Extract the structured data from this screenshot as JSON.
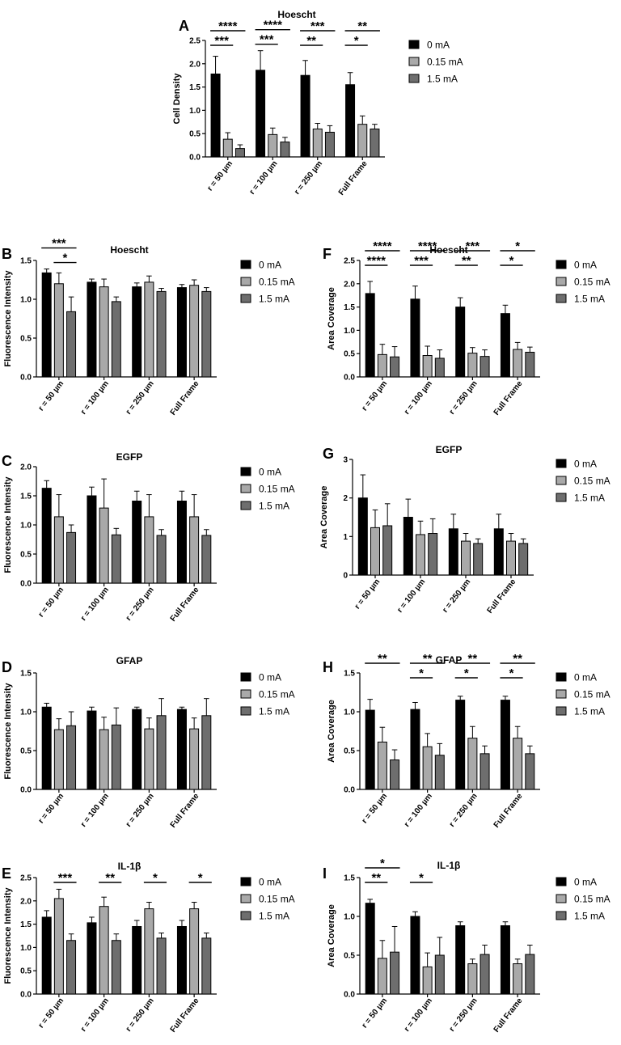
{
  "chart_data": [
    {
      "panel": "A",
      "type": "bar",
      "title": "Hoescht",
      "ylabel": "Cell Density",
      "xlabel": "",
      "ylim": [
        0,
        2.5
      ],
      "yticks": [
        "0.0",
        "0.5",
        "1.0",
        "1.5",
        "2.0",
        "2.5"
      ],
      "categories": [
        "r = 50 µm",
        "r = 100 µm",
        "r = 250 µm",
        "Full Frame"
      ],
      "series": [
        {
          "name": "0 mA",
          "color": "#000000",
          "values": [
            1.78,
            1.86,
            1.75,
            1.55
          ],
          "errors": [
            0.38,
            0.42,
            0.32,
            0.26
          ]
        },
        {
          "name": "0.15 mA",
          "color": "#a9a9a9",
          "values": [
            0.38,
            0.48,
            0.6,
            0.7
          ],
          "errors": [
            0.14,
            0.14,
            0.12,
            0.18
          ]
        },
        {
          "name": "1.5 mA",
          "color": "#6e6e6e",
          "values": [
            0.18,
            0.32,
            0.53,
            0.6
          ],
          "errors": [
            0.08,
            0.1,
            0.14,
            0.1
          ]
        }
      ],
      "significance": [
        {
          "group": 0,
          "from": 0,
          "to": 2,
          "label": "****",
          "level": 1
        },
        {
          "group": 0,
          "from": 0,
          "to": 1,
          "label": "***",
          "level": 0
        },
        {
          "group": 1,
          "from": 0,
          "to": 2,
          "label": "****",
          "level": 1
        },
        {
          "group": 1,
          "from": 0,
          "to": 1,
          "label": "***",
          "level": 0
        },
        {
          "group": 2,
          "from": 0,
          "to": 2,
          "label": "***",
          "level": 1
        },
        {
          "group": 2,
          "from": 0,
          "to": 1,
          "label": "**",
          "level": 0
        },
        {
          "group": 3,
          "from": 0,
          "to": 2,
          "label": "**",
          "level": 1
        },
        {
          "group": 3,
          "from": 0,
          "to": 1,
          "label": "*",
          "level": 0
        }
      ]
    },
    {
      "panel": "B",
      "type": "bar",
      "title": "Hoescht",
      "ylabel": "Fluorescence Intensity",
      "xlabel": "",
      "ylim": [
        0,
        1.5
      ],
      "yticks": [
        "0.0",
        "0.5",
        "1.0",
        "1.5"
      ],
      "categories": [
        "r = 50 µm",
        "r = 100 µm",
        "r = 250 µm",
        "Full Frame"
      ],
      "series": [
        {
          "name": "0 mA",
          "color": "#000000",
          "values": [
            1.34,
            1.22,
            1.16,
            1.15
          ],
          "errors": [
            0.05,
            0.04,
            0.05,
            0.04
          ]
        },
        {
          "name": "0.15 mA",
          "color": "#a9a9a9",
          "values": [
            1.2,
            1.16,
            1.22,
            1.18
          ],
          "errors": [
            0.14,
            0.1,
            0.08,
            0.07
          ]
        },
        {
          "name": "1.5 mA",
          "color": "#6e6e6e",
          "values": [
            0.84,
            0.97,
            1.1,
            1.1
          ],
          "errors": [
            0.19,
            0.06,
            0.04,
            0.05
          ]
        }
      ],
      "significance": [
        {
          "group": 0,
          "from": 0,
          "to": 2,
          "label": "***",
          "level": 1
        },
        {
          "group": 0,
          "from": 1,
          "to": 2,
          "label": "*",
          "level": 0
        }
      ]
    },
    {
      "panel": "F",
      "type": "bar",
      "title": "Hoescht",
      "ylabel": "Area Coverage",
      "xlabel": "",
      "ylim": [
        0,
        2.5
      ],
      "yticks": [
        "0.0",
        "0.5",
        "1.0",
        "1.5",
        "2.0",
        "2.5"
      ],
      "categories": [
        "r = 50 µm",
        "r = 100 µm",
        "r = 250 µm",
        "Full Frame"
      ],
      "series": [
        {
          "name": "0 mA",
          "color": "#000000",
          "values": [
            1.79,
            1.67,
            1.5,
            1.36
          ],
          "errors": [
            0.26,
            0.28,
            0.2,
            0.18
          ]
        },
        {
          "name": "0.15 mA",
          "color": "#a9a9a9",
          "values": [
            0.48,
            0.46,
            0.51,
            0.59
          ],
          "errors": [
            0.22,
            0.2,
            0.12,
            0.15
          ]
        },
        {
          "name": "1.5 mA",
          "color": "#6e6e6e",
          "values": [
            0.43,
            0.4,
            0.44,
            0.53
          ],
          "errors": [
            0.22,
            0.18,
            0.14,
            0.11
          ]
        }
      ],
      "significance": [
        {
          "group": 0,
          "from": 0,
          "to": 2,
          "label": "****",
          "level": 1
        },
        {
          "group": 0,
          "from": 0,
          "to": 1,
          "label": "****",
          "level": 0
        },
        {
          "group": 1,
          "from": 0,
          "to": 2,
          "label": "****",
          "level": 1
        },
        {
          "group": 1,
          "from": 0,
          "to": 1,
          "label": "***",
          "level": 0
        },
        {
          "group": 2,
          "from": 0,
          "to": 2,
          "label": "***",
          "level": 1
        },
        {
          "group": 2,
          "from": 0,
          "to": 1,
          "label": "**",
          "level": 0
        },
        {
          "group": 3,
          "from": 0,
          "to": 2,
          "label": "*",
          "level": 1
        },
        {
          "group": 3,
          "from": 0,
          "to": 1,
          "label": "*",
          "level": 0
        }
      ]
    },
    {
      "panel": "C",
      "type": "bar",
      "title": "EGFP",
      "ylabel": "Fluorescence Intensity",
      "xlabel": "",
      "ylim": [
        0,
        2.0
      ],
      "yticks": [
        "0.0",
        "0.5",
        "1.0",
        "1.5",
        "2.0"
      ],
      "categories": [
        "r = 50 µm",
        "r = 100 µm",
        "r = 250 µm",
        "Full Frame"
      ],
      "series": [
        {
          "name": "0 mA",
          "color": "#000000",
          "values": [
            1.63,
            1.5,
            1.41,
            1.41
          ],
          "errors": [
            0.13,
            0.15,
            0.17,
            0.17
          ]
        },
        {
          "name": "0.15 mA",
          "color": "#a9a9a9",
          "values": [
            1.14,
            1.29,
            1.14,
            1.14
          ],
          "errors": [
            0.38,
            0.5,
            0.38,
            0.38
          ]
        },
        {
          "name": "1.5 mA",
          "color": "#6e6e6e",
          "values": [
            0.87,
            0.83,
            0.82,
            0.82
          ],
          "errors": [
            0.13,
            0.11,
            0.1,
            0.1
          ]
        }
      ],
      "significance": []
    },
    {
      "panel": "G",
      "type": "bar",
      "title": "EGFP",
      "ylabel": "Area Coverage",
      "xlabel": "",
      "ylim": [
        0,
        3
      ],
      "yticks": [
        "0",
        "1",
        "2",
        "3"
      ],
      "categories": [
        "r = 50 µm",
        "r = 100 µm",
        "r = 250 µm",
        "Full Frame"
      ],
      "series": [
        {
          "name": "0 mA",
          "color": "#000000",
          "values": [
            2.0,
            1.5,
            1.2,
            1.2
          ],
          "errors": [
            0.6,
            0.47,
            0.38,
            0.38
          ]
        },
        {
          "name": "0.15 mA",
          "color": "#a9a9a9",
          "values": [
            1.23,
            1.05,
            0.88,
            0.88
          ],
          "errors": [
            0.46,
            0.35,
            0.2,
            0.2
          ]
        },
        {
          "name": "1.5 mA",
          "color": "#6e6e6e",
          "values": [
            1.28,
            1.08,
            0.82,
            0.82
          ],
          "errors": [
            0.57,
            0.38,
            0.12,
            0.12
          ]
        }
      ],
      "significance": []
    },
    {
      "panel": "D",
      "type": "bar",
      "title": "GFAP",
      "ylabel": "Fluorescence Intensity",
      "xlabel": "",
      "ylim": [
        0,
        1.5
      ],
      "yticks": [
        "0.0",
        "0.5",
        "1.0",
        "1.5"
      ],
      "categories": [
        "r = 50 µm",
        "r = 100 µm",
        "r = 250 µm",
        "Full Frame"
      ],
      "series": [
        {
          "name": "0 mA",
          "color": "#000000",
          "values": [
            1.06,
            1.01,
            1.03,
            1.03
          ],
          "errors": [
            0.05,
            0.05,
            0.03,
            0.03
          ]
        },
        {
          "name": "0.15 mA",
          "color": "#a9a9a9",
          "values": [
            0.77,
            0.77,
            0.78,
            0.78
          ],
          "errors": [
            0.14,
            0.16,
            0.14,
            0.14
          ]
        },
        {
          "name": "1.5 mA",
          "color": "#6e6e6e",
          "values": [
            0.82,
            0.83,
            0.95,
            0.95
          ],
          "errors": [
            0.18,
            0.22,
            0.22,
            0.22
          ]
        }
      ],
      "significance": []
    },
    {
      "panel": "H",
      "type": "bar",
      "title": "GFAP",
      "ylabel": "Area Coverage",
      "xlabel": "",
      "ylim": [
        0,
        1.5
      ],
      "yticks": [
        "0.0",
        "0.5",
        "1.0",
        "1.5"
      ],
      "categories": [
        "r = 50 µm",
        "r = 100 µm",
        "r = 250 µm",
        "Full Frame"
      ],
      "series": [
        {
          "name": "0 mA",
          "color": "#000000",
          "values": [
            1.02,
            1.03,
            1.15,
            1.15
          ],
          "errors": [
            0.14,
            0.09,
            0.05,
            0.05
          ]
        },
        {
          "name": "0.15 mA",
          "color": "#a9a9a9",
          "values": [
            0.61,
            0.55,
            0.66,
            0.66
          ],
          "errors": [
            0.19,
            0.17,
            0.15,
            0.15
          ]
        },
        {
          "name": "1.5 mA",
          "color": "#6e6e6e",
          "values": [
            0.38,
            0.44,
            0.46,
            0.46
          ],
          "errors": [
            0.13,
            0.15,
            0.1,
            0.1
          ]
        }
      ],
      "significance": [
        {
          "group": 0,
          "from": 0,
          "to": 2,
          "label": "**",
          "level": 1
        },
        {
          "group": 1,
          "from": 0,
          "to": 2,
          "label": "**",
          "level": 1
        },
        {
          "group": 1,
          "from": 0,
          "to": 1,
          "label": "*",
          "level": 0
        },
        {
          "group": 2,
          "from": 0,
          "to": 2,
          "label": "**",
          "level": 1
        },
        {
          "group": 2,
          "from": 0,
          "to": 1,
          "label": "*",
          "level": 0
        },
        {
          "group": 3,
          "from": 0,
          "to": 2,
          "label": "**",
          "level": 1
        },
        {
          "group": 3,
          "from": 0,
          "to": 1,
          "label": "*",
          "level": 0
        }
      ]
    },
    {
      "panel": "E",
      "type": "bar",
      "title": "IL-1β",
      "ylabel": "Fluorescence Intensity",
      "xlabel": "",
      "ylim": [
        0,
        2.5
      ],
      "yticks": [
        "0.0",
        "0.5",
        "1.0",
        "1.5",
        "2.0",
        "2.5"
      ],
      "categories": [
        "r = 50 µm",
        "r = 100 µm",
        "r = 250 µm",
        "Full Frame"
      ],
      "series": [
        {
          "name": "0 mA",
          "color": "#000000",
          "values": [
            1.65,
            1.53,
            1.45,
            1.45
          ],
          "errors": [
            0.14,
            0.12,
            0.13,
            0.13
          ]
        },
        {
          "name": "0.15 mA",
          "color": "#a9a9a9",
          "values": [
            2.05,
            1.88,
            1.83,
            1.83
          ],
          "errors": [
            0.2,
            0.2,
            0.14,
            0.14
          ]
        },
        {
          "name": "1.5 mA",
          "color": "#6e6e6e",
          "values": [
            1.15,
            1.15,
            1.2,
            1.2
          ],
          "errors": [
            0.14,
            0.14,
            0.11,
            0.11
          ]
        }
      ],
      "significance": [
        {
          "group": 0,
          "from": 1,
          "to": 2,
          "label": "***",
          "level": 0
        },
        {
          "group": 1,
          "from": 1,
          "to": 2,
          "label": "**",
          "level": 0
        },
        {
          "group": 2,
          "from": 1,
          "to": 2,
          "label": "*",
          "level": 0
        },
        {
          "group": 3,
          "from": 1,
          "to": 2,
          "label": "*",
          "level": 0
        }
      ]
    },
    {
      "panel": "I",
      "type": "bar",
      "title": "IL-1β",
      "ylabel": "Area Coverage",
      "xlabel": "",
      "ylim": [
        0,
        1.5
      ],
      "yticks": [
        "0.0",
        "0.5",
        "1.0",
        "1.5"
      ],
      "categories": [
        "r = 50 µm",
        "r = 100 µm",
        "r = 250 µm",
        "Full Frame"
      ],
      "series": [
        {
          "name": "0 mA",
          "color": "#000000",
          "values": [
            1.17,
            1.0,
            0.88,
            0.88
          ],
          "errors": [
            0.05,
            0.06,
            0.05,
            0.05
          ]
        },
        {
          "name": "0.15 mA",
          "color": "#a9a9a9",
          "values": [
            0.46,
            0.35,
            0.39,
            0.39
          ],
          "errors": [
            0.23,
            0.18,
            0.06,
            0.06
          ]
        },
        {
          "name": "1.5 mA",
          "color": "#6e6e6e",
          "values": [
            0.54,
            0.5,
            0.51,
            0.51
          ],
          "errors": [
            0.33,
            0.23,
            0.12,
            0.12
          ]
        }
      ],
      "significance": [
        {
          "group": 0,
          "from": 0,
          "to": 2,
          "label": "*",
          "level": 1
        },
        {
          "group": 0,
          "from": 0,
          "to": 1,
          "label": "**",
          "level": 0
        },
        {
          "group": 1,
          "from": 0,
          "to": 1,
          "label": "*",
          "level": 0
        }
      ]
    }
  ]
}
